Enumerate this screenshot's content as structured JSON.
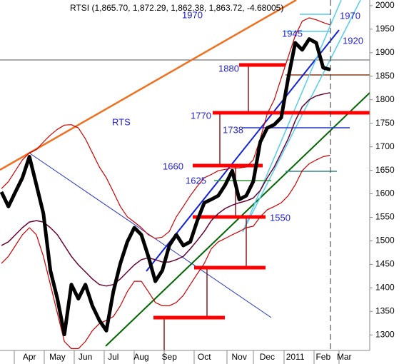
{
  "chart_data": {
    "type": "line",
    "title": "RTSI (1,865.70, 1,872.29, 1,862.38, 1,863.72, -4.68005)",
    "annotations": [
      "RTS"
    ],
    "levels": [
      1970,
      1970,
      1945,
      1920,
      1880,
      1770,
      1738,
      1660,
      1625,
      1550
    ],
    "categories": [
      null,
      null,
      null,
      null,
      "Apr",
      null,
      null,
      null,
      "May",
      null,
      null,
      null,
      "Jun",
      null,
      null,
      null,
      "Jul",
      null,
      null,
      null,
      "Aug",
      null,
      null,
      null,
      "Sep",
      null,
      null,
      null,
      null,
      "Oct",
      null,
      null,
      null,
      null,
      "Nov",
      null,
      null,
      null,
      "Dec",
      null,
      null,
      null,
      "2011",
      null,
      null,
      null,
      "Feb",
      null,
      null,
      "Mar",
      null
    ],
    "series": [
      {
        "color": "#000000",
        "values": [
          1604,
          1573,
          1604,
          1634,
          1679,
          1619,
          1558,
          1437,
          1377,
          1301,
          1407,
          1377,
          1407,
          1362,
          1331,
          1309,
          1392,
          1452,
          1498,
          1528,
          1513,
          1467,
          1414,
          1437,
          1490,
          1513,
          1490,
          1498,
          1543,
          1581,
          1588,
          1596,
          1619,
          1649,
          1588,
          1596,
          1626,
          1710,
          1740,
          1747,
          1762,
          1846,
          1921,
          1906,
          1929,
          1921,
          1868,
          1864,
          null,
          null,
          null
        ]
      },
      {
        "color": "#cc0000",
        "values": [
          1611,
          1626,
          1649,
          1672,
          1687,
          1694,
          1710,
          1725,
          1737,
          1746,
          1747,
          1740,
          1717,
          1687,
          1657,
          1634,
          1604,
          1573,
          1551,
          1540,
          1528,
          1513,
          1505,
          1508,
          1520,
          1551,
          1573,
          1596,
          1616,
          1634,
          1641,
          1649,
          1652,
          1655,
          1655,
          1657,
          1672,
          1717,
          1770,
          1800,
          1846,
          1891,
          1936,
          1967,
          1974,
          1970,
          1964,
          1959,
          null,
          null,
          null
        ]
      },
      {
        "color": "#cc0000",
        "values": [
          1452,
          1467,
          1490,
          1513,
          1528,
          1513,
          1467,
          1407,
          1346,
          1286,
          1271,
          1271,
          1286,
          1309,
          1324,
          1331,
          1339,
          1362,
          1392,
          1414,
          1414,
          1392,
          1369,
          1362,
          1362,
          1369,
          1384,
          1407,
          1430,
          1452,
          1483,
          1498,
          1505,
          1513,
          1520,
          1528,
          1531,
          1551,
          1566,
          1573,
          1581,
          1596,
          1619,
          1649,
          1664,
          1672,
          1679,
          1682,
          null,
          null,
          null
        ]
      },
      {
        "color": "#660033",
        "values": [
          1490,
          1498,
          1513,
          1528,
          1540,
          1543,
          1540,
          1528,
          1513,
          1490,
          1467,
          1449,
          1434,
          1419,
          1407,
          1404,
          1407,
          1419,
          1434,
          1449,
          1460,
          1464,
          1460,
          1455,
          1455,
          1460,
          1467,
          1483,
          1501,
          1520,
          1543,
          1558,
          1569,
          1576,
          1581,
          1585,
          1591,
          1607,
          1634,
          1657,
          1687,
          1717,
          1755,
          1785,
          1800,
          1808,
          1812,
          1815,
          null,
          null,
          null
        ]
      }
    ],
    "ylim": [
      1267,
      2012
    ],
    "yticks": [
      1300,
      1350,
      1400,
      1450,
      1500,
      1550,
      1600,
      1650,
      1700,
      1750,
      1800,
      1850,
      1900,
      1950,
      2000
    ]
  }
}
